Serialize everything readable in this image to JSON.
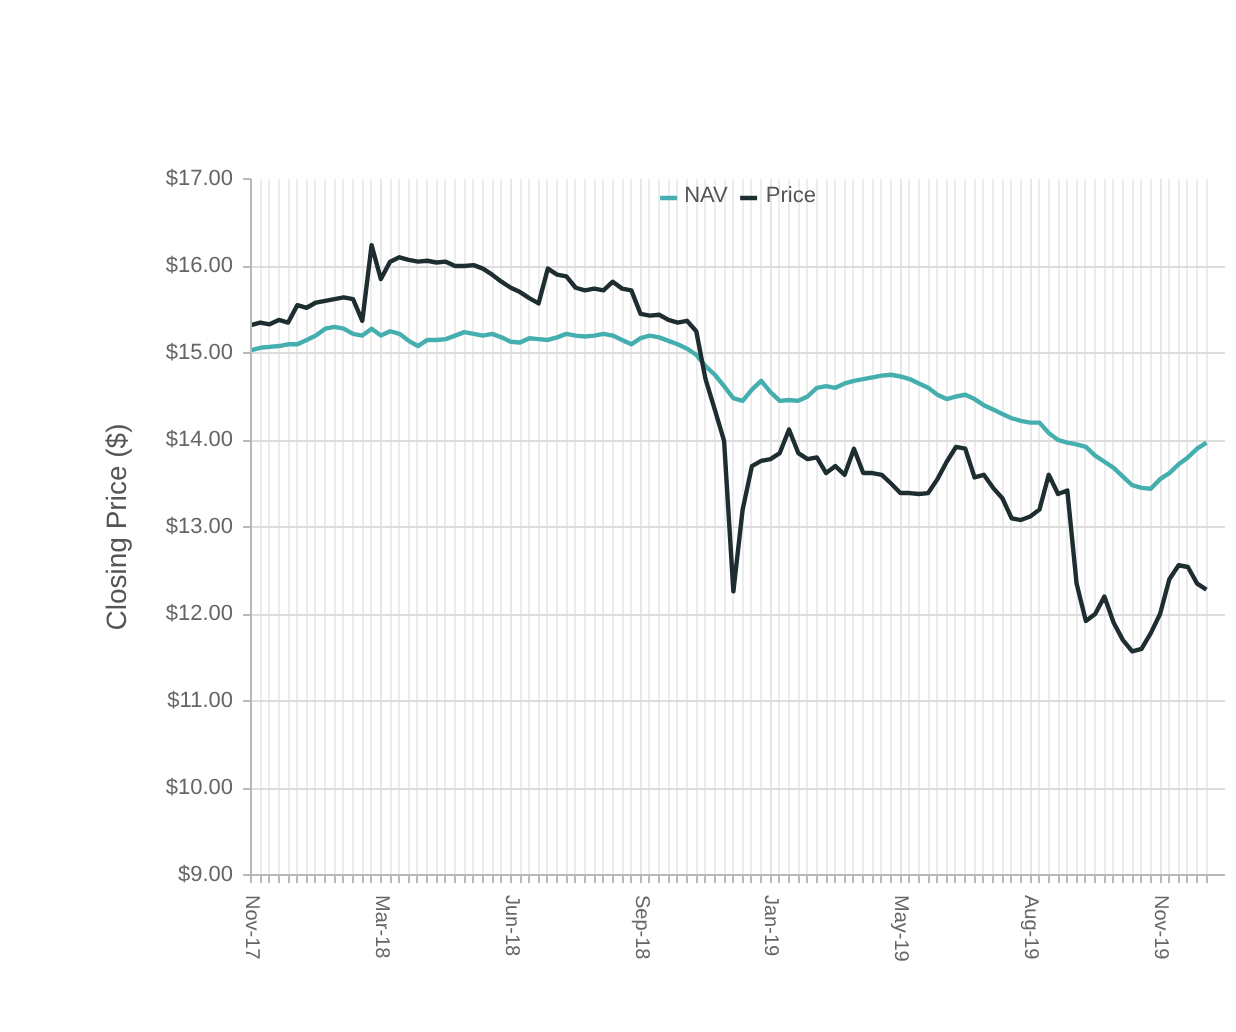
{
  "chart_data": {
    "type": "line",
    "ylabel": "Closing Price ($)",
    "categories": [
      "Nov-17",
      null,
      null,
      null,
      null,
      null,
      null,
      null,
      null,
      null,
      null,
      null,
      null,
      null,
      "Mar-18",
      null,
      null,
      null,
      null,
      null,
      null,
      null,
      null,
      null,
      null,
      null,
      null,
      null,
      "Jun-18",
      null,
      null,
      null,
      null,
      null,
      null,
      null,
      null,
      null,
      null,
      null,
      null,
      null,
      "Sep-18",
      null,
      null,
      null,
      null,
      null,
      null,
      null,
      null,
      null,
      null,
      null,
      null,
      null,
      "Jan-19",
      null,
      null,
      null,
      null,
      null,
      null,
      null,
      null,
      null,
      null,
      null,
      null,
      null,
      "May-19",
      null,
      null,
      null,
      null,
      null,
      null,
      null,
      null,
      null,
      null,
      null,
      null,
      null,
      "Aug-19",
      null,
      null,
      null,
      null,
      null,
      null,
      null,
      null,
      null,
      null,
      null,
      null,
      null,
      "Nov-19",
      null,
      null,
      null,
      null,
      null
    ],
    "series": [
      {
        "name": "NAV",
        "color": "#45aeae",
        "values": [
          15.03,
          15.06,
          15.07,
          15.08,
          15.1,
          15.1,
          15.15,
          15.2,
          15.28,
          15.3,
          15.28,
          15.22,
          15.2,
          15.28,
          15.2,
          15.25,
          15.22,
          15.14,
          15.08,
          15.15,
          15.15,
          15.16,
          15.2,
          15.24,
          15.22,
          15.2,
          15.22,
          15.18,
          15.13,
          15.12,
          15.17,
          15.16,
          15.15,
          15.18,
          15.22,
          15.2,
          15.19,
          15.2,
          15.22,
          15.2,
          15.15,
          15.1,
          15.17,
          15.2,
          15.18,
          15.14,
          15.1,
          15.05,
          14.98,
          14.85,
          14.75,
          14.62,
          14.48,
          14.45,
          14.58,
          14.68,
          14.55,
          14.45,
          14.46,
          14.45,
          14.5,
          14.6,
          14.62,
          14.6,
          14.65,
          14.68,
          14.7,
          14.72,
          14.74,
          14.75,
          14.73,
          14.7,
          14.65,
          14.6,
          14.52,
          14.47,
          14.5,
          14.52,
          14.47,
          14.4,
          14.35,
          14.3,
          14.25,
          14.22,
          14.2,
          14.2,
          14.08,
          14.0,
          13.97,
          13.95,
          13.92,
          13.82,
          13.75,
          13.68,
          13.58,
          13.48,
          13.45,
          13.44,
          13.55,
          13.62,
          13.72,
          13.8,
          13.9,
          13.97
        ]
      },
      {
        "name": "Price",
        "color": "#1d2d30",
        "values": [
          15.32,
          15.35,
          15.33,
          15.38,
          15.35,
          15.55,
          15.52,
          15.58,
          15.6,
          15.62,
          15.64,
          15.62,
          15.37,
          16.24,
          15.85,
          16.05,
          16.1,
          16.07,
          16.05,
          16.06,
          16.04,
          16.05,
          16.0,
          16.0,
          16.01,
          15.97,
          15.9,
          15.82,
          15.75,
          15.7,
          15.63,
          15.57,
          15.97,
          15.9,
          15.88,
          15.75,
          15.72,
          15.74,
          15.72,
          15.82,
          15.74,
          15.72,
          15.45,
          15.43,
          15.44,
          15.38,
          15.35,
          15.37,
          15.25,
          14.7,
          14.35,
          13.99,
          12.26,
          13.2,
          13.7,
          13.76,
          13.78,
          13.85,
          14.12,
          13.85,
          13.78,
          13.8,
          13.62,
          13.7,
          13.6,
          13.9,
          13.62,
          13.62,
          13.6,
          13.5,
          13.39,
          13.39,
          13.38,
          13.39,
          13.55,
          13.75,
          13.92,
          13.9,
          13.57,
          13.6,
          13.45,
          13.33,
          13.1,
          13.08,
          13.12,
          13.2,
          13.6,
          13.38,
          13.42,
          12.35,
          11.92,
          12.0,
          12.2,
          11.9,
          11.7,
          11.57,
          11.6,
          11.78,
          12.0,
          12.4,
          12.56,
          12.54,
          12.35,
          12.28
        ]
      }
    ],
    "ylim": [
      9,
      17
    ],
    "yticks": [
      {
        "value": 9,
        "label": "$9.00"
      },
      {
        "value": 10,
        "label": "$10.00"
      },
      {
        "value": 11,
        "label": "$11.00"
      },
      {
        "value": 12,
        "label": "$12.00"
      },
      {
        "value": 13,
        "label": "$13.00"
      },
      {
        "value": 14,
        "label": "$14.00"
      },
      {
        "value": 15,
        "label": "$15.00"
      },
      {
        "value": 16,
        "label": "$16.00"
      },
      {
        "value": 17,
        "label": "$17.00"
      }
    ],
    "grid": true,
    "legend": "top",
    "line_style": "solid"
  }
}
